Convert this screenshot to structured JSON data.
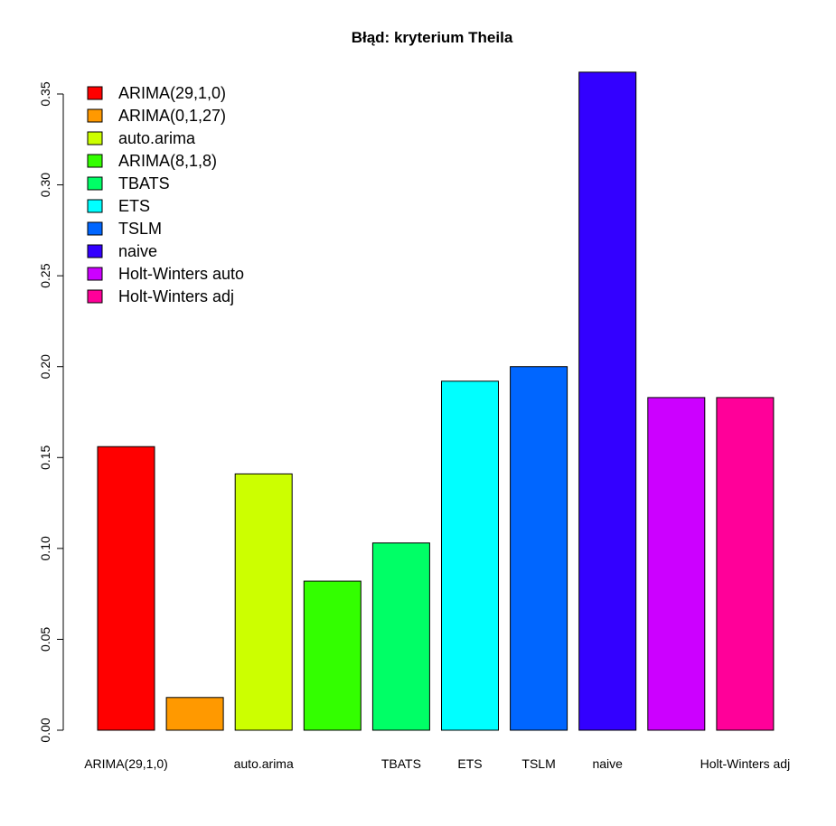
{
  "chart_data": {
    "type": "bar",
    "title": "Błąd: kryterium Theila",
    "xlabel": "",
    "ylabel": "",
    "ylim": [
      0,
      0.36
    ],
    "yticks": [
      "0.00",
      "0.05",
      "0.10",
      "0.15",
      "0.20",
      "0.25",
      "0.30",
      "0.35"
    ],
    "categories": [
      "ARIMA(29,1,0)",
      "ARIMA(0,1,27)",
      "auto.arima",
      "ARIMA(8,1,8)",
      "TBATS",
      "ETS",
      "TSLM",
      "naive",
      "Holt-Winters auto",
      "Holt-Winters adj"
    ],
    "shown_category_labels": [
      "ARIMA(29,1,0)",
      "",
      "auto.arima",
      "",
      "TBATS",
      "ETS",
      "TSLM",
      "naive",
      "",
      "Holt-Winters adj"
    ],
    "values": [
      0.156,
      0.018,
      0.141,
      0.082,
      0.103,
      0.192,
      0.2,
      0.362,
      0.183,
      0.183
    ],
    "colors": [
      "#FF0000",
      "#FF9900",
      "#CCFF00",
      "#33FF00",
      "#00FF66",
      "#00FFFF",
      "#0066FF",
      "#3300FF",
      "#CC00FF",
      "#FF0099"
    ],
    "legend": {
      "position": "top-left",
      "entries": [
        "ARIMA(29,1,0)",
        "ARIMA(0,1,27)",
        "auto.arima",
        "ARIMA(8,1,8)",
        "TBATS",
        "ETS",
        "TSLM",
        "naive",
        "Holt-Winters auto",
        "Holt-Winters adj"
      ]
    },
    "grid": false
  }
}
